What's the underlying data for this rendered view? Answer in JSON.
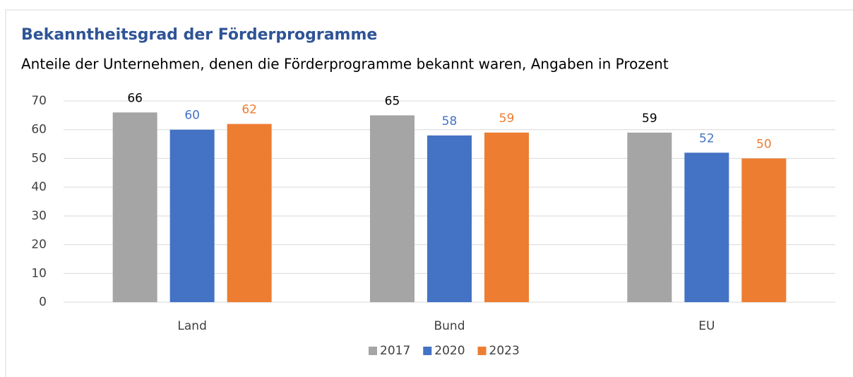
{
  "chart_data": {
    "type": "bar",
    "title": "Bekanntheitsgrad der Förderprogramme",
    "subtitle": "Anteile der Unternehmen, denen die Förderprogramme bekannt waren, Angaben in Prozent",
    "categories": [
      "Land",
      "Bund",
      "EU"
    ],
    "series": [
      {
        "name": "2017",
        "color": "#a5a5a5",
        "label_color": "#000000",
        "values": [
          66,
          65,
          59
        ]
      },
      {
        "name": "2020",
        "color": "#4472c4",
        "label_color": "#4472c4",
        "values": [
          60,
          58,
          52
        ]
      },
      {
        "name": "2023",
        "color": "#ed7d31",
        "label_color": "#ed7d31",
        "values": [
          62,
          59,
          50
        ]
      }
    ],
    "ylim": [
      0,
      70
    ],
    "yticks": [
      0,
      10,
      20,
      30,
      40,
      50,
      60,
      70
    ],
    "grid": true,
    "legend": "bottom"
  }
}
